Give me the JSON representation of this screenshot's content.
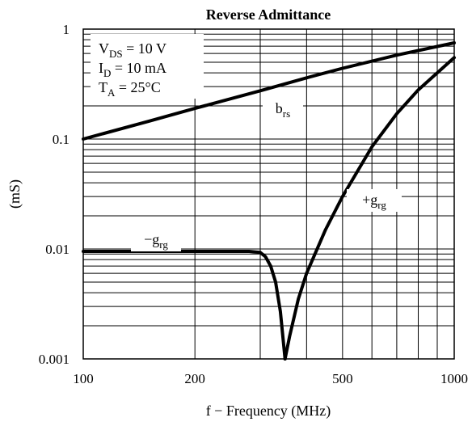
{
  "chart_data": {
    "type": "line",
    "title": "Reverse Admittance",
    "xlabel": "f − Frequency (MHz)",
    "ylabel": "(mS)",
    "xscale": "log",
    "yscale": "log",
    "xlim": [
      100,
      1000
    ],
    "ylim": [
      0.001,
      1
    ],
    "grid": true,
    "x_ticks": [
      {
        "value": 100,
        "label": "100"
      },
      {
        "value": 200,
        "label": "200"
      },
      {
        "value": 500,
        "label": "500"
      },
      {
        "value": 1000,
        "label": "1000"
      }
    ],
    "y_ticks": [
      {
        "value": 1,
        "label": "1"
      },
      {
        "value": 0.1,
        "label": "0.1"
      },
      {
        "value": 0.01,
        "label": "0.01"
      },
      {
        "value": 0.001,
        "label": "0.001"
      }
    ],
    "conditions": [
      {
        "symbol": "V",
        "sub": "DS",
        "value": " = 10 V"
      },
      {
        "symbol": "I",
        "sub": "D",
        "value": " = 10 mA"
      },
      {
        "symbol": "T",
        "sub": "A",
        "value": " = 25°C"
      }
    ],
    "series": [
      {
        "name": "brs",
        "label_main": "b",
        "label_sub": "rs",
        "x": [
          100,
          150,
          200,
          300,
          400,
          500,
          700,
          1000
        ],
        "y": [
          0.1,
          0.145,
          0.19,
          0.275,
          0.36,
          0.44,
          0.58,
          0.75
        ]
      },
      {
        "name": "+grg",
        "label_main": "+g",
        "label_sub": "rg",
        "x": [
          350,
          360,
          380,
          400,
          450,
          500,
          600,
          700,
          800,
          900,
          1000
        ],
        "y": [
          0.001,
          0.0016,
          0.0035,
          0.006,
          0.015,
          0.03,
          0.085,
          0.17,
          0.28,
          0.4,
          0.55
        ]
      },
      {
        "name": "−grg",
        "label_main": "−g",
        "label_sub": "rg",
        "x": [
          100,
          200,
          280,
          300,
          310,
          320,
          330,
          340,
          350
        ],
        "y": [
          0.0095,
          0.0095,
          0.0095,
          0.0093,
          0.0085,
          0.007,
          0.005,
          0.0027,
          0.001
        ]
      }
    ]
  }
}
